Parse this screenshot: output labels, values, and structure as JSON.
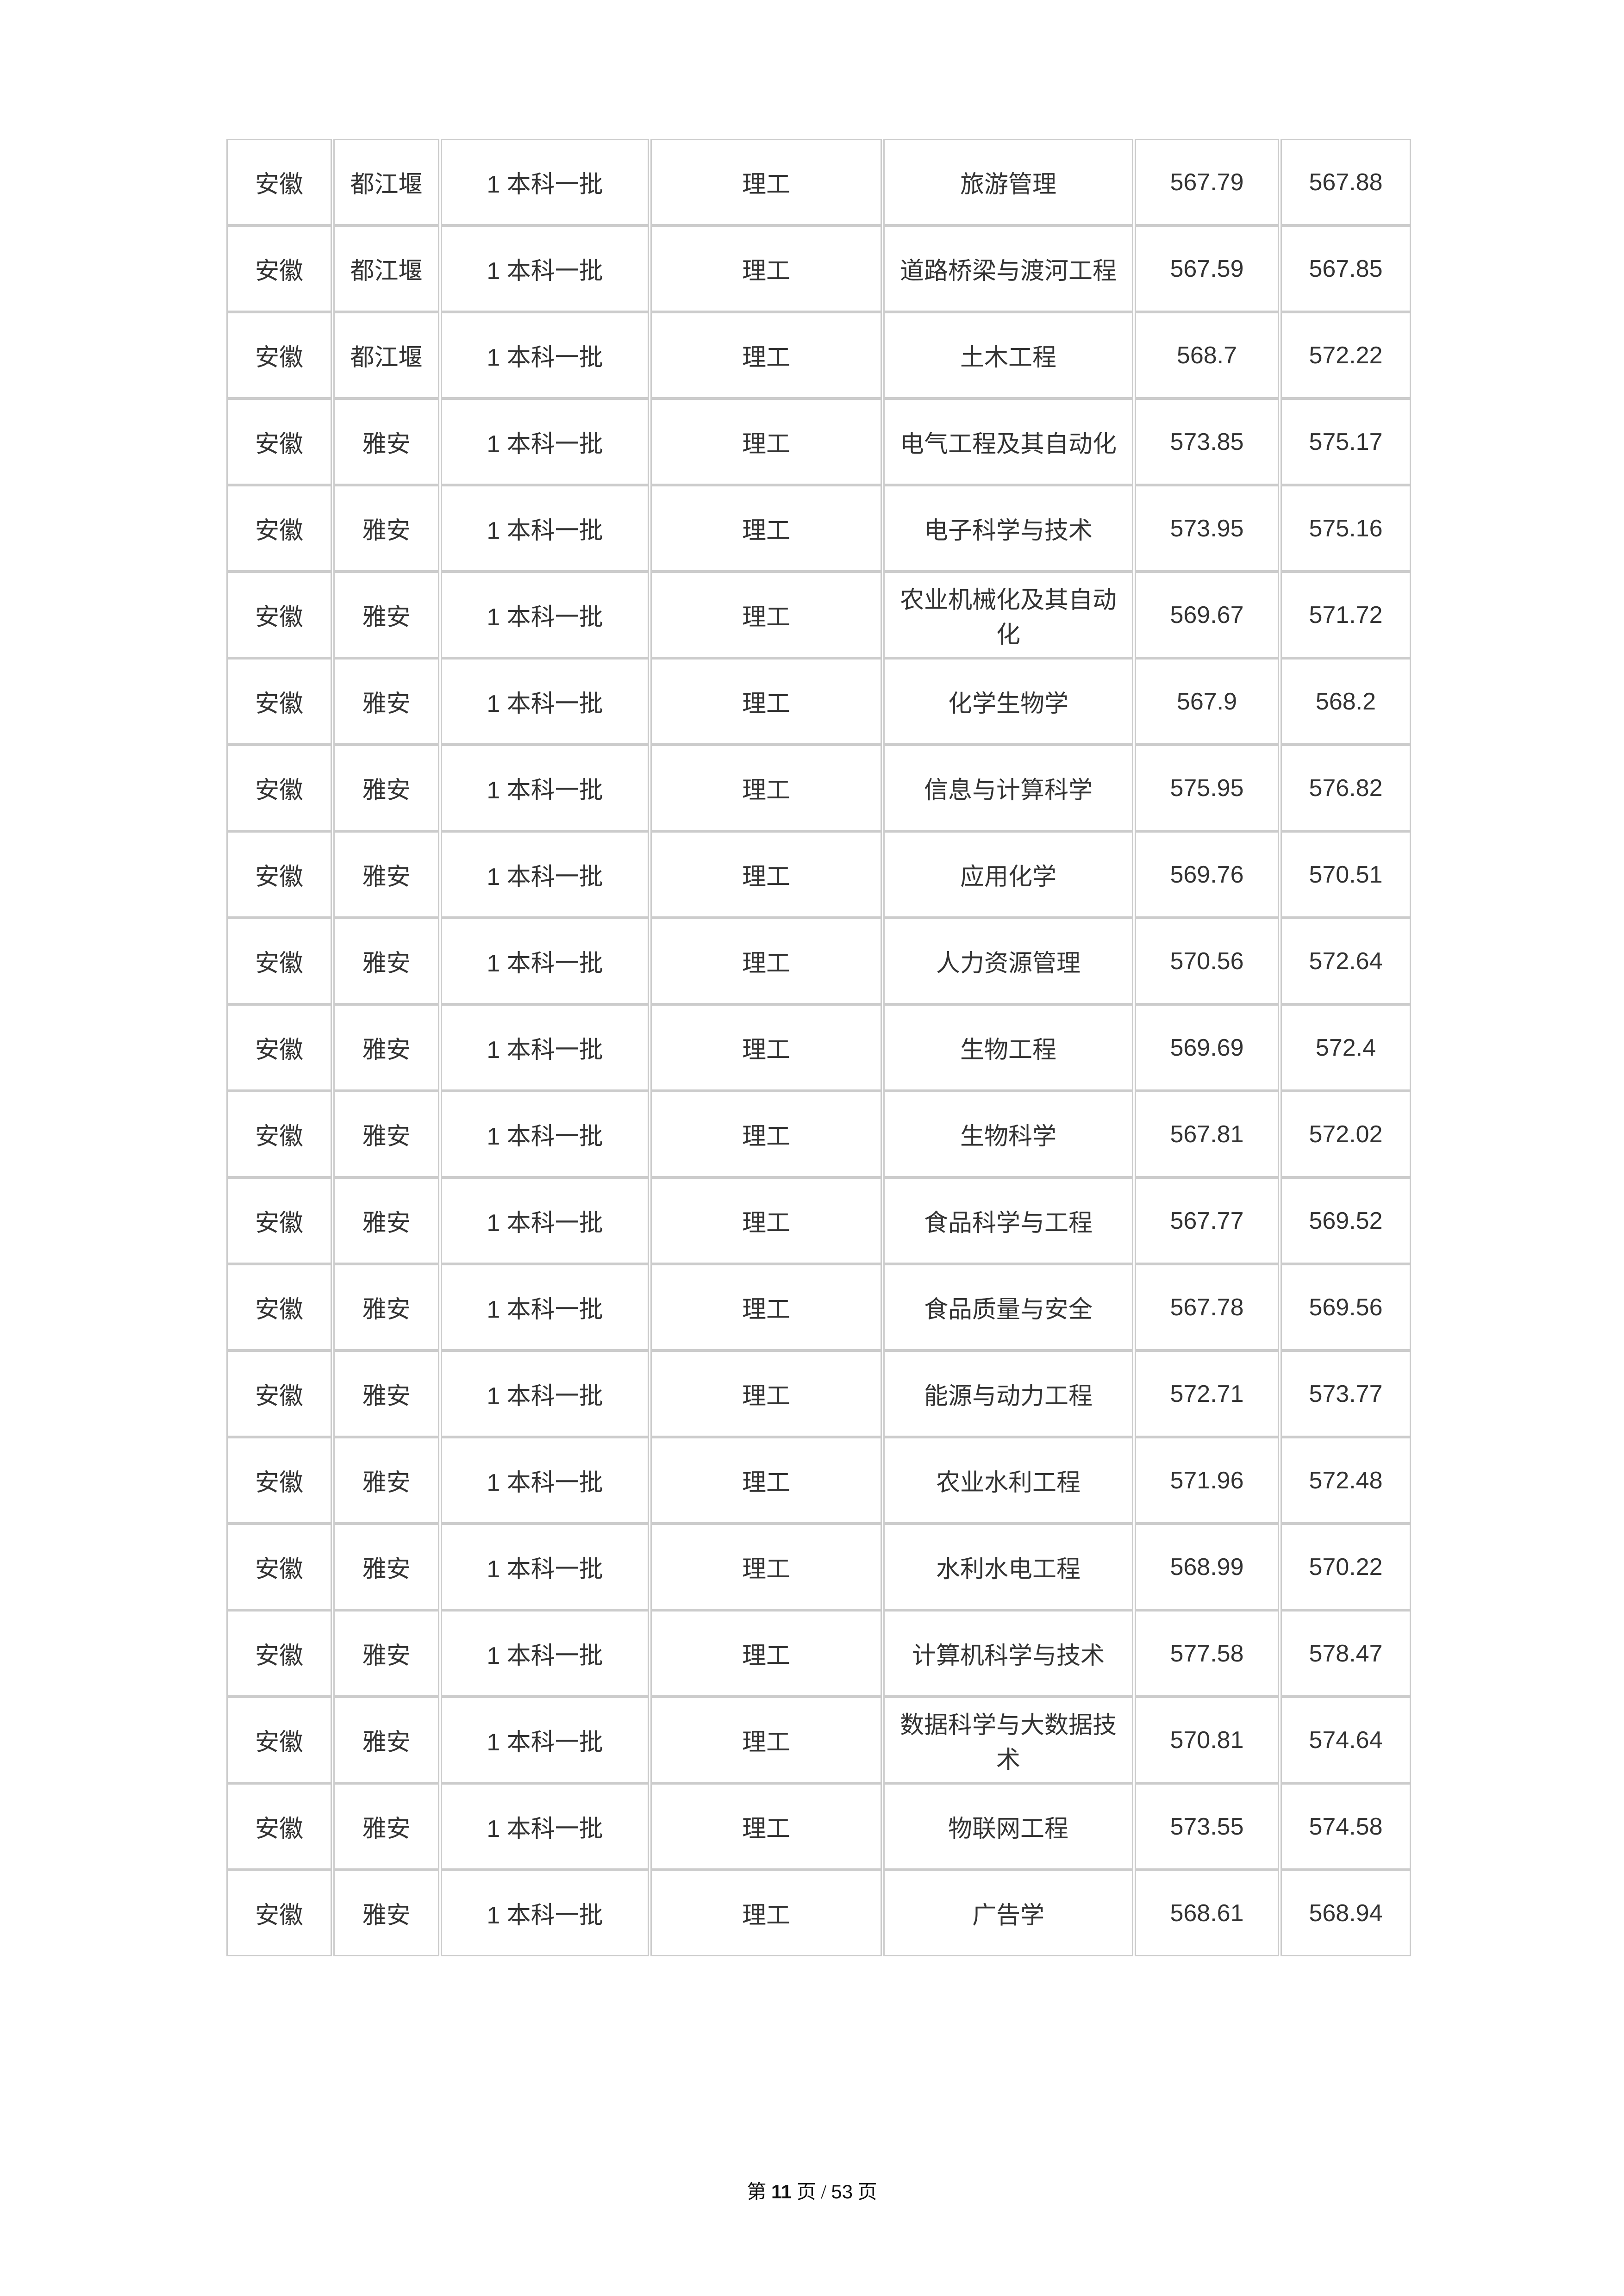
{
  "table": {
    "rows": [
      [
        "安徽",
        "都江堰",
        "1 本科一批",
        "理工",
        "旅游管理",
        "567.79",
        "567.88"
      ],
      [
        "安徽",
        "都江堰",
        "1 本科一批",
        "理工",
        "道路桥梁与渡河工程",
        "567.59",
        "567.85"
      ],
      [
        "安徽",
        "都江堰",
        "1 本科一批",
        "理工",
        "土木工程",
        "568.7",
        "572.22"
      ],
      [
        "安徽",
        "雅安",
        "1 本科一批",
        "理工",
        "电气工程及其自动化",
        "573.85",
        "575.17"
      ],
      [
        "安徽",
        "雅安",
        "1 本科一批",
        "理工",
        "电子科学与技术",
        "573.95",
        "575.16"
      ],
      [
        "安徽",
        "雅安",
        "1 本科一批",
        "理工",
        "农业机械化及其自动化",
        "569.67",
        "571.72"
      ],
      [
        "安徽",
        "雅安",
        "1 本科一批",
        "理工",
        "化学生物学",
        "567.9",
        "568.2"
      ],
      [
        "安徽",
        "雅安",
        "1 本科一批",
        "理工",
        "信息与计算科学",
        "575.95",
        "576.82"
      ],
      [
        "安徽",
        "雅安",
        "1 本科一批",
        "理工",
        "应用化学",
        "569.76",
        "570.51"
      ],
      [
        "安徽",
        "雅安",
        "1 本科一批",
        "理工",
        "人力资源管理",
        "570.56",
        "572.64"
      ],
      [
        "安徽",
        "雅安",
        "1 本科一批",
        "理工",
        "生物工程",
        "569.69",
        "572.4"
      ],
      [
        "安徽",
        "雅安",
        "1 本科一批",
        "理工",
        "生物科学",
        "567.81",
        "572.02"
      ],
      [
        "安徽",
        "雅安",
        "1 本科一批",
        "理工",
        "食品科学与工程",
        "567.77",
        "569.52"
      ],
      [
        "安徽",
        "雅安",
        "1 本科一批",
        "理工",
        "食品质量与安全",
        "567.78",
        "569.56"
      ],
      [
        "安徽",
        "雅安",
        "1 本科一批",
        "理工",
        "能源与动力工程",
        "572.71",
        "573.77"
      ],
      [
        "安徽",
        "雅安",
        "1 本科一批",
        "理工",
        "农业水利工程",
        "571.96",
        "572.48"
      ],
      [
        "安徽",
        "雅安",
        "1 本科一批",
        "理工",
        "水利水电工程",
        "568.99",
        "570.22"
      ],
      [
        "安徽",
        "雅安",
        "1 本科一批",
        "理工",
        "计算机科学与技术",
        "577.58",
        "578.47"
      ],
      [
        "安徽",
        "雅安",
        "1 本科一批",
        "理工",
        "数据科学与大数据技术",
        "570.81",
        "574.64"
      ],
      [
        "安徽",
        "雅安",
        "1 本科一批",
        "理工",
        "物联网工程",
        "573.55",
        "574.58"
      ],
      [
        "安徽",
        "雅安",
        "1 本科一批",
        "理工",
        "广告学",
        "568.61",
        "568.94"
      ]
    ]
  },
  "footer": {
    "prefix": "第 ",
    "current_page": "11",
    "middle": " 页 / ",
    "total_pages": "53",
    "suffix": " 页"
  },
  "colors": {
    "border": "#cccccc",
    "text": "#333333",
    "background": "#ffffff"
  }
}
